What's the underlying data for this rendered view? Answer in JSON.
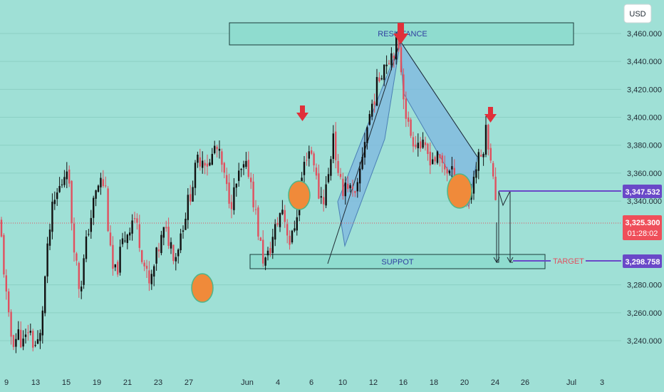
{
  "colors": {
    "background": "#9fe0d6",
    "candle_up": "#111111",
    "candle_down": "#e0505f",
    "zone_fill": "#8fdccf",
    "zone_stroke": "#1b3b3b",
    "pattern_fill": "#7fb7e0",
    "marker": "#e84a7a",
    "circle": "#f08a3a",
    "arrow_red": "#e0303a",
    "badge_blue": "#6a48c8",
    "badge_red": "#ef4f5a",
    "target_text": "#e0505f"
  },
  "currency_label": "USD",
  "zones": {
    "resistance": {
      "label": "RESISTANCE",
      "low": 3451,
      "high": 3467,
      "from": "May 30",
      "to": "Jun 27"
    },
    "support": {
      "label": "SUPPOT",
      "low": 3292,
      "high": 3301,
      "from": "Jun 1",
      "to": "Jun 27"
    }
  },
  "target_label": "TARGET",
  "price_badges": {
    "level_1": "3,347.532",
    "level_2": "3,298.758",
    "current_price": "3,325.300",
    "countdown": "01:28:02"
  },
  "chart_data": {
    "type": "candlestick",
    "currency": "USD",
    "ylim": [
      3227,
      3470
    ],
    "y_ticks": [
      {
        "value": 3460,
        "label": "3,460.000"
      },
      {
        "value": 3440,
        "label": "3,440.000"
      },
      {
        "value": 3420,
        "label": "3,420.000"
      },
      {
        "value": 3400,
        "label": "3,400.000"
      },
      {
        "value": 3380,
        "label": "3,380.000"
      },
      {
        "value": 3360,
        "label": "3,360.000"
      },
      {
        "value": 3340,
        "label": "3,340.000"
      },
      {
        "value": 3280,
        "label": "3,280.000"
      },
      {
        "value": 3260,
        "label": "3,260.000"
      },
      {
        "value": 3240,
        "label": "3,240.000"
      }
    ],
    "x_ticks": [
      "9",
      "13",
      "15",
      "19",
      "21",
      "23",
      "27",
      "Jun",
      "4",
      "6",
      "10",
      "12",
      "16",
      "18",
      "20",
      "24",
      "26",
      "Jul",
      "3"
    ],
    "current_price": 3325.3,
    "key_levels": [
      3347.532,
      3298.758
    ],
    "swing_path": [
      [
        0,
        3325
      ],
      [
        8,
        3275
      ],
      [
        14,
        3245
      ],
      [
        20,
        3240
      ],
      [
        26,
        3245
      ],
      [
        34,
        3236
      ],
      [
        40,
        3250
      ],
      [
        48,
        3236
      ],
      [
        56,
        3240
      ],
      [
        64,
        3290
      ],
      [
        72,
        3330
      ],
      [
        80,
        3345
      ],
      [
        88,
        3355
      ],
      [
        94,
        3368
      ],
      [
        100,
        3330
      ],
      [
        106,
        3300
      ],
      [
        112,
        3275
      ],
      [
        118,
        3298
      ],
      [
        124,
        3320
      ],
      [
        132,
        3340
      ],
      [
        140,
        3355
      ],
      [
        148,
        3350
      ],
      [
        154,
        3305
      ],
      [
        160,
        3285
      ],
      [
        166,
        3295
      ],
      [
        172,
        3310
      ],
      [
        180,
        3320
      ],
      [
        188,
        3330
      ],
      [
        196,
        3312
      ],
      [
        204,
        3290
      ],
      [
        210,
        3278
      ],
      [
        216,
        3292
      ],
      [
        222,
        3305
      ],
      [
        230,
        3318
      ],
      [
        238,
        3312
      ],
      [
        246,
        3300
      ],
      [
        254,
        3318
      ],
      [
        262,
        3335
      ],
      [
        270,
        3352
      ],
      [
        278,
        3370
      ],
      [
        286,
        3372
      ],
      [
        294,
        3365
      ],
      [
        302,
        3380
      ],
      [
        310,
        3368
      ],
      [
        318,
        3348
      ],
      [
        326,
        3340
      ],
      [
        334,
        3356
      ],
      [
        342,
        3362
      ],
      [
        350,
        3362
      ],
      [
        356,
        3340
      ],
      [
        362,
        3320
      ],
      [
        368,
        3300
      ],
      [
        374,
        3296
      ],
      [
        382,
        3312
      ],
      [
        390,
        3326
      ],
      [
        396,
        3336
      ],
      [
        402,
        3322
      ],
      [
        408,
        3308
      ],
      [
        416,
        3330
      ],
      [
        424,
        3358
      ],
      [
        432,
        3378
      ],
      [
        440,
        3372
      ],
      [
        446,
        3346
      ],
      [
        454,
        3342
      ],
      [
        462,
        3360
      ],
      [
        468,
        3392
      ],
      [
        474,
        3356
      ],
      [
        480,
        3348
      ],
      [
        486,
        3355
      ],
      [
        494,
        3345
      ],
      [
        500,
        3340
      ],
      [
        506,
        3365
      ],
      [
        512,
        3385
      ],
      [
        520,
        3405
      ],
      [
        528,
        3420
      ],
      [
        534,
        3432
      ],
      [
        540,
        3440
      ],
      [
        548,
        3445
      ],
      [
        556,
        3452
      ],
      [
        562,
        3440
      ],
      [
        568,
        3410
      ],
      [
        574,
        3390
      ],
      [
        580,
        3385
      ],
      [
        588,
        3382
      ],
      [
        596,
        3375
      ],
      [
        604,
        3372
      ],
      [
        612,
        3370
      ],
      [
        620,
        3368
      ],
      [
        628,
        3362
      ],
      [
        636,
        3358
      ],
      [
        644,
        3352
      ],
      [
        652,
        3346
      ],
      [
        658,
        3340
      ],
      [
        664,
        3355
      ],
      [
        670,
        3368
      ],
      [
        676,
        3372
      ],
      [
        682,
        3390
      ],
      [
        688,
        3378
      ],
      [
        694,
        3345
      ],
      [
        698,
        3325
      ]
    ]
  }
}
